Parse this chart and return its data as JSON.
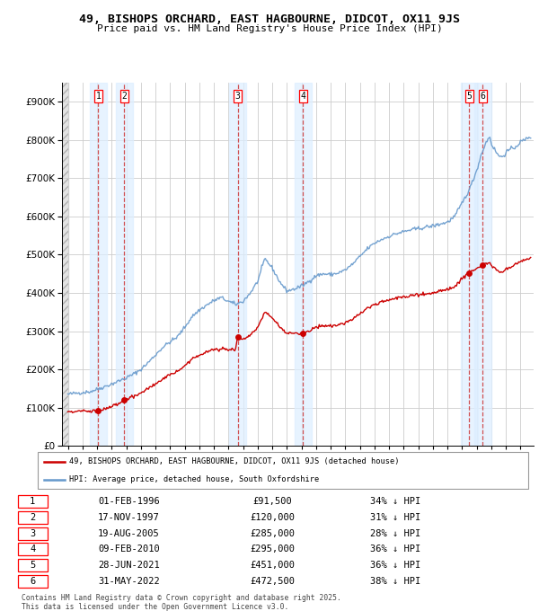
{
  "title_line1": "49, BISHOPS ORCHARD, EAST HAGBOURNE, DIDCOT, OX11 9JS",
  "title_line2": "Price paid vs. HM Land Registry's House Price Index (HPI)",
  "ylim": [
    0,
    950000
  ],
  "yticks": [
    0,
    100000,
    200000,
    300000,
    400000,
    500000,
    600000,
    700000,
    800000,
    900000
  ],
  "ytick_labels": [
    "£0",
    "£100K",
    "£200K",
    "£300K",
    "£400K",
    "£500K",
    "£600K",
    "£700K",
    "£800K",
    "£900K"
  ],
  "xlim_start": 1993.6,
  "xlim_end": 2025.9,
  "transactions": [
    {
      "num": 1,
      "date_str": "01-FEB-1996",
      "year": 1996.08,
      "price": 91500,
      "pct": "34%"
    },
    {
      "num": 2,
      "date_str": "17-NOV-1997",
      "year": 1997.87,
      "price": 120000,
      "pct": "31%"
    },
    {
      "num": 3,
      "date_str": "19-AUG-2005",
      "year": 2005.63,
      "price": 285000,
      "pct": "28%"
    },
    {
      "num": 4,
      "date_str": "09-FEB-2010",
      "year": 2010.11,
      "price": 295000,
      "pct": "36%"
    },
    {
      "num": 5,
      "date_str": "28-JUN-2021",
      "year": 2021.49,
      "price": 451000,
      "pct": "36%"
    },
    {
      "num": 6,
      "date_str": "31-MAY-2022",
      "year": 2022.41,
      "price": 472500,
      "pct": "38%"
    }
  ],
  "legend_red": "49, BISHOPS ORCHARD, EAST HAGBOURNE, DIDCOT, OX11 9JS (detached house)",
  "legend_blue": "HPI: Average price, detached house, South Oxfordshire",
  "footer": "Contains HM Land Registry data © Crown copyright and database right 2025.\nThis data is licensed under the Open Government Licence v3.0.",
  "red_color": "#cc0000",
  "blue_color": "#6699cc",
  "grid_color": "#cccccc",
  "vline_color": "#cc3333",
  "span_color": "#ddeeff",
  "hpi_anchors": [
    [
      1994.0,
      135000
    ],
    [
      1994.5,
      138000
    ],
    [
      1995.0,
      140000
    ],
    [
      1995.5,
      142000
    ],
    [
      1996.0,
      148000
    ],
    [
      1996.5,
      155000
    ],
    [
      1997.0,
      162000
    ],
    [
      1997.5,
      170000
    ],
    [
      1998.0,
      178000
    ],
    [
      1998.5,
      188000
    ],
    [
      1999.0,
      200000
    ],
    [
      1999.5,
      218000
    ],
    [
      2000.0,
      238000
    ],
    [
      2000.5,
      258000
    ],
    [
      2001.0,
      272000
    ],
    [
      2001.5,
      285000
    ],
    [
      2002.0,
      310000
    ],
    [
      2002.5,
      338000
    ],
    [
      2003.0,
      355000
    ],
    [
      2003.5,
      368000
    ],
    [
      2004.0,
      380000
    ],
    [
      2004.5,
      388000
    ],
    [
      2005.0,
      378000
    ],
    [
      2005.5,
      370000
    ],
    [
      2006.0,
      378000
    ],
    [
      2006.5,
      400000
    ],
    [
      2007.0,
      430000
    ],
    [
      2007.5,
      490000
    ],
    [
      2008.0,
      465000
    ],
    [
      2008.5,
      430000
    ],
    [
      2009.0,
      405000
    ],
    [
      2009.5,
      410000
    ],
    [
      2010.0,
      418000
    ],
    [
      2010.5,
      430000
    ],
    [
      2011.0,
      445000
    ],
    [
      2011.5,
      450000
    ],
    [
      2012.0,
      448000
    ],
    [
      2012.5,
      452000
    ],
    [
      2013.0,
      460000
    ],
    [
      2013.5,
      475000
    ],
    [
      2014.0,
      495000
    ],
    [
      2014.5,
      515000
    ],
    [
      2015.0,
      530000
    ],
    [
      2015.5,
      540000
    ],
    [
      2016.0,
      548000
    ],
    [
      2016.5,
      555000
    ],
    [
      2017.0,
      560000
    ],
    [
      2017.5,
      565000
    ],
    [
      2018.0,
      568000
    ],
    [
      2018.5,
      572000
    ],
    [
      2019.0,
      575000
    ],
    [
      2019.5,
      580000
    ],
    [
      2020.0,
      585000
    ],
    [
      2020.5,
      600000
    ],
    [
      2021.0,
      635000
    ],
    [
      2021.5,
      670000
    ],
    [
      2022.0,
      720000
    ],
    [
      2022.3,
      760000
    ],
    [
      2022.6,
      790000
    ],
    [
      2022.9,
      810000
    ],
    [
      2023.0,
      790000
    ],
    [
      2023.3,
      770000
    ],
    [
      2023.6,
      755000
    ],
    [
      2023.9,
      760000
    ],
    [
      2024.0,
      768000
    ],
    [
      2024.3,
      775000
    ],
    [
      2024.6,
      780000
    ],
    [
      2024.9,
      790000
    ],
    [
      2025.0,
      795000
    ],
    [
      2025.3,
      800000
    ],
    [
      2025.6,
      808000
    ]
  ],
  "red_anchors": [
    [
      1994.0,
      90000
    ],
    [
      1994.5,
      91000
    ],
    [
      1995.0,
      91500
    ],
    [
      1995.5,
      91500
    ],
    [
      1996.08,
      91500
    ],
    [
      1996.5,
      96000
    ],
    [
      1997.0,
      103000
    ],
    [
      1997.5,
      110000
    ],
    [
      1997.87,
      120000
    ],
    [
      1998.0,
      122000
    ],
    [
      1998.5,
      130000
    ],
    [
      1999.0,
      138000
    ],
    [
      1999.5,
      150000
    ],
    [
      2000.0,
      163000
    ],
    [
      2000.5,
      175000
    ],
    [
      2001.0,
      185000
    ],
    [
      2001.5,
      194000
    ],
    [
      2002.0,
      210000
    ],
    [
      2002.5,
      228000
    ],
    [
      2003.0,
      238000
    ],
    [
      2003.5,
      246000
    ],
    [
      2004.0,
      252000
    ],
    [
      2004.5,
      255000
    ],
    [
      2005.0,
      252000
    ],
    [
      2005.5,
      254000
    ],
    [
      2005.63,
      285000
    ],
    [
      2006.0,
      278000
    ],
    [
      2006.5,
      290000
    ],
    [
      2007.0,
      310000
    ],
    [
      2007.5,
      350000
    ],
    [
      2008.0,
      335000
    ],
    [
      2008.5,
      312000
    ],
    [
      2009.0,
      295000
    ],
    [
      2009.5,
      294000
    ],
    [
      2010.11,
      295000
    ],
    [
      2010.5,
      300000
    ],
    [
      2011.0,
      310000
    ],
    [
      2011.5,
      315000
    ],
    [
      2012.0,
      313000
    ],
    [
      2012.5,
      316000
    ],
    [
      2013.0,
      322000
    ],
    [
      2013.5,
      332000
    ],
    [
      2014.0,
      346000
    ],
    [
      2014.5,
      360000
    ],
    [
      2015.0,
      370000
    ],
    [
      2015.5,
      377000
    ],
    [
      2016.0,
      382000
    ],
    [
      2016.5,
      386000
    ],
    [
      2017.0,
      390000
    ],
    [
      2017.5,
      393000
    ],
    [
      2018.0,
      395000
    ],
    [
      2018.5,
      398000
    ],
    [
      2019.0,
      401000
    ],
    [
      2019.5,
      405000
    ],
    [
      2020.0,
      408000
    ],
    [
      2020.5,
      418000
    ],
    [
      2021.0,
      438000
    ],
    [
      2021.49,
      451000
    ],
    [
      2022.0,
      465000
    ],
    [
      2022.41,
      472500
    ],
    [
      2022.6,
      475000
    ],
    [
      2022.9,
      480000
    ],
    [
      2023.0,
      470000
    ],
    [
      2023.3,
      462000
    ],
    [
      2023.6,
      455000
    ],
    [
      2023.9,
      458000
    ],
    [
      2024.0,
      462000
    ],
    [
      2024.3,
      467000
    ],
    [
      2024.6,
      472000
    ],
    [
      2024.9,
      480000
    ],
    [
      2025.0,
      482000
    ],
    [
      2025.3,
      486000
    ],
    [
      2025.6,
      492000
    ]
  ]
}
